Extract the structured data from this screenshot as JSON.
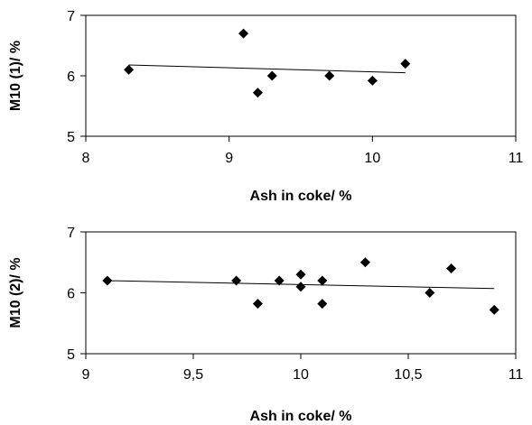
{
  "chart_data": [
    {
      "type": "scatter",
      "xlabel": "Ash in coke/ %",
      "ylabel": "M10 (1)/ %",
      "xlim": [
        8,
        11
      ],
      "ylim": [
        5,
        7
      ],
      "xticks": [
        8,
        9,
        10,
        11
      ],
      "yticks": [
        5,
        6,
        7
      ],
      "xtick_labels": [
        "8",
        "9",
        "10",
        "11"
      ],
      "ytick_labels": [
        "5",
        "6",
        "7"
      ],
      "points": [
        {
          "x": 8.3,
          "y": 6.1
        },
        {
          "x": 9.1,
          "y": 6.7
        },
        {
          "x": 9.2,
          "y": 5.72
        },
        {
          "x": 9.3,
          "y": 6.0
        },
        {
          "x": 9.7,
          "y": 6.0
        },
        {
          "x": 10.0,
          "y": 5.92
        },
        {
          "x": 10.23,
          "y": 6.2
        }
      ],
      "trendline": {
        "x": [
          8.3,
          10.23
        ],
        "y": [
          6.18,
          6.05
        ]
      },
      "grid": false,
      "legend": "none"
    },
    {
      "type": "scatter",
      "xlabel": "Ash in coke/ %",
      "ylabel": "M10 (2)/ %",
      "xlim": [
        9,
        11
      ],
      "ylim": [
        5,
        7
      ],
      "xticks": [
        9,
        9.5,
        10,
        10.5,
        11
      ],
      "yticks": [
        5,
        6,
        7
      ],
      "xtick_labels": [
        "9",
        "9,5",
        "10",
        "10,5",
        "11"
      ],
      "ytick_labels": [
        "5",
        "6",
        "7"
      ],
      "points": [
        {
          "x": 9.1,
          "y": 6.2
        },
        {
          "x": 9.7,
          "y": 6.2
        },
        {
          "x": 9.8,
          "y": 5.82
        },
        {
          "x": 9.9,
          "y": 6.2
        },
        {
          "x": 10.0,
          "y": 6.3
        },
        {
          "x": 10.0,
          "y": 6.1
        },
        {
          "x": 10.1,
          "y": 6.2
        },
        {
          "x": 10.1,
          "y": 5.82
        },
        {
          "x": 10.3,
          "y": 6.5
        },
        {
          "x": 10.6,
          "y": 6.0
        },
        {
          "x": 10.7,
          "y": 6.4
        },
        {
          "x": 10.9,
          "y": 5.72
        }
      ],
      "trendline": {
        "x": [
          9.1,
          10.9
        ],
        "y": [
          6.2,
          6.07
        ]
      },
      "grid": false,
      "legend": "none"
    }
  ]
}
